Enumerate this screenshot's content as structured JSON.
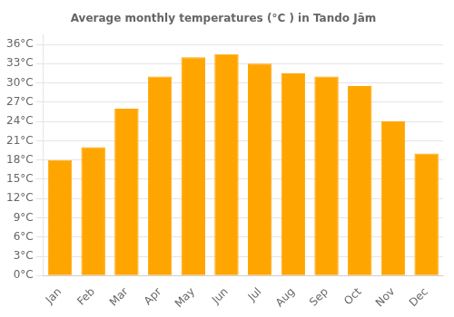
{
  "chart_data": {
    "type": "bar",
    "title": "Average monthly temperatures (°C ) in Tando Jām",
    "categories": [
      "Jan",
      "Feb",
      "Mar",
      "Apr",
      "May",
      "Jun",
      "Jul",
      "Aug",
      "Sep",
      "Oct",
      "Nov",
      "Dec"
    ],
    "values": [
      18,
      20,
      26,
      31,
      34,
      34.5,
      33,
      31.5,
      31,
      29.5,
      24,
      19
    ],
    "color": "#FFA500",
    "ylim": [
      0,
      37.5
    ],
    "yticks": [
      {
        "value": 0,
        "label": "0°C"
      },
      {
        "value": 3,
        "label": "3°C"
      },
      {
        "value": 6,
        "label": "6°C"
      },
      {
        "value": 9,
        "label": "9°C"
      },
      {
        "value": 12,
        "label": "12°C"
      },
      {
        "value": 15,
        "label": "15°C"
      },
      {
        "value": 18,
        "label": "18°C"
      },
      {
        "value": 21,
        "label": "21°C"
      },
      {
        "value": 24,
        "label": "24°C"
      },
      {
        "value": 27,
        "label": "27°C"
      },
      {
        "value": 30,
        "label": "30°C"
      },
      {
        "value": 33,
        "label": "33°C"
      },
      {
        "value": 36,
        "label": "36°C"
      }
    ],
    "grid": true
  }
}
